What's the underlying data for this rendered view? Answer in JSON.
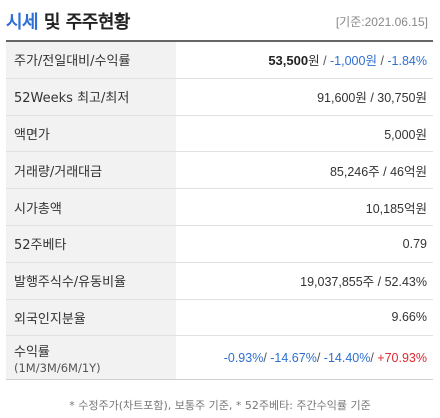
{
  "header": {
    "title_accent": "시세",
    "title_rest": " 및 주주현황",
    "base_date": "[기준:2021.06.15]"
  },
  "rows": {
    "price": {
      "label": "주가/전일대비/수익률",
      "price_value": "53,500",
      "price_unit": "원",
      "sep1": " / ",
      "change": "-1,000원",
      "sep2": " / ",
      "change_pct": "-1.84%"
    },
    "weeks52": {
      "label": "52Weeks 최고/최저",
      "value": "91,600원 / 30,750원"
    },
    "par": {
      "label": "액면가",
      "value": "5,000원"
    },
    "volume": {
      "label": "거래량/거래대금",
      "value": "85,246주 / 46억원"
    },
    "market_cap": {
      "label": "시가총액",
      "value": "10,185억원"
    },
    "beta": {
      "label": "52주베타",
      "value": "0.79"
    },
    "shares": {
      "label": "발행주식수/유동비율",
      "value": "19,037,855주 / 52.43%"
    },
    "foreign": {
      "label": "외국인지분율",
      "value": "9.66%"
    },
    "returns": {
      "label": "수익률",
      "sublabel": "(1M/3M/6M/1Y)",
      "r1m": "-0.93%",
      "sep1": "/ ",
      "r3m": "-14.67%",
      "sep2": "/ ",
      "r6m": "-14.40%",
      "sep3": "/ ",
      "r1y": "+70.93%"
    }
  },
  "footnote": "* 수정주가(차트포함), 보통주 기준, * 52주베타: 주간수익률 기준",
  "colors": {
    "accent": "#2d6fd6",
    "down": "#2f6fd1",
    "up": "#e0292f",
    "label_bg": "#f2f2f2"
  }
}
